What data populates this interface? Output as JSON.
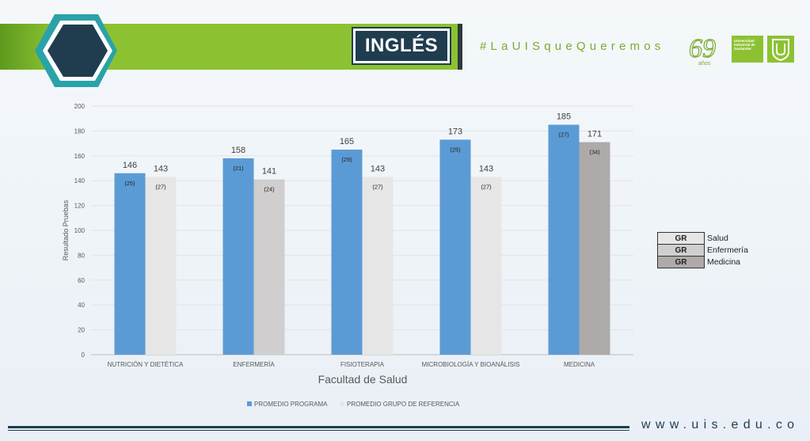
{
  "header": {
    "title": "INGLÉS",
    "hashtag": "#LaUISqueQueremos",
    "anniversary": "69",
    "anniversary_sub": "años",
    "institution": "Universidad Industrial de Santander",
    "brand_green": "#8cc232",
    "brand_dark": "#1f3d4f"
  },
  "chart_data": {
    "type": "bar",
    "categories": [
      "NUTRICIÓN Y DIETÉTICA",
      "ENFERMERÍA",
      "FISIOTERAPIA",
      "MICROBIOLOGÍA Y BIOANÁLISIS",
      "MEDICINA"
    ],
    "series": [
      {
        "name": "PROMEDIO PROGRAMA",
        "values": [
          146,
          158,
          165,
          173,
          185
        ],
        "sub_labels": [
          "(25)",
          "(21)",
          "(29)",
          "(25)",
          "(27)"
        ],
        "color": "#5b9bd5"
      },
      {
        "name": "PROMEDIO GRUPO DE REFERENCIA",
        "values": [
          143,
          141,
          143,
          143,
          171
        ],
        "sub_labels": [
          "(27)",
          "(24)",
          "(27)",
          "(27)",
          "(34)"
        ],
        "colors": [
          "#e7e6e6",
          "#d0cece",
          "#e7e6e6",
          "#e7e6e6",
          "#aeaaaa"
        ]
      }
    ],
    "xlabel": "Facultad de Salud",
    "ylabel": "Resultado Pruebas",
    "ylim": [
      0,
      200
    ],
    "yticks": [
      0,
      20,
      40,
      60,
      80,
      100,
      120,
      140,
      160,
      180,
      200
    ],
    "grid": true,
    "legend_position": "bottom"
  },
  "group_legend": [
    {
      "code": "GR",
      "name": "Salud",
      "color": "#e7e6e6"
    },
    {
      "code": "GR",
      "name": "Enfermería",
      "color": "#d0cece"
    },
    {
      "code": "GR",
      "name": "Medicina",
      "color": "#aeaaaa"
    }
  ],
  "footer": {
    "url": "www.uis.edu.co"
  }
}
